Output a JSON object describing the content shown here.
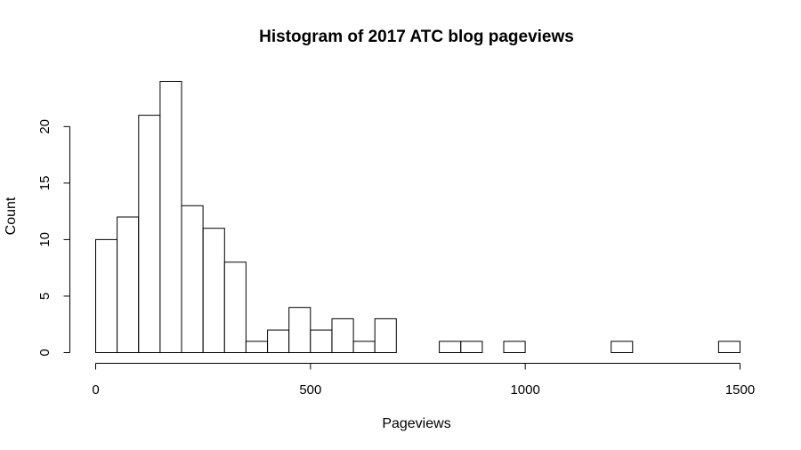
{
  "chart_data": {
    "type": "bar",
    "title": "Histogram of 2017 ATC blog pageviews",
    "xlabel": "Pageviews",
    "ylabel": "Count",
    "bin_width": 50,
    "bins": [
      {
        "start": 0,
        "end": 50,
        "count": 10
      },
      {
        "start": 50,
        "end": 100,
        "count": 12
      },
      {
        "start": 100,
        "end": 150,
        "count": 21
      },
      {
        "start": 150,
        "end": 200,
        "count": 24
      },
      {
        "start": 200,
        "end": 250,
        "count": 13
      },
      {
        "start": 250,
        "end": 300,
        "count": 11
      },
      {
        "start": 300,
        "end": 350,
        "count": 8
      },
      {
        "start": 350,
        "end": 400,
        "count": 1
      },
      {
        "start": 400,
        "end": 450,
        "count": 2
      },
      {
        "start": 450,
        "end": 500,
        "count": 4
      },
      {
        "start": 500,
        "end": 550,
        "count": 2
      },
      {
        "start": 550,
        "end": 600,
        "count": 3
      },
      {
        "start": 600,
        "end": 650,
        "count": 1
      },
      {
        "start": 650,
        "end": 700,
        "count": 3
      },
      {
        "start": 700,
        "end": 750,
        "count": 0
      },
      {
        "start": 750,
        "end": 800,
        "count": 0
      },
      {
        "start": 800,
        "end": 850,
        "count": 1
      },
      {
        "start": 850,
        "end": 900,
        "count": 1
      },
      {
        "start": 900,
        "end": 950,
        "count": 0
      },
      {
        "start": 950,
        "end": 1000,
        "count": 1
      },
      {
        "start": 1000,
        "end": 1050,
        "count": 0
      },
      {
        "start": 1050,
        "end": 1100,
        "count": 0
      },
      {
        "start": 1100,
        "end": 1150,
        "count": 0
      },
      {
        "start": 1150,
        "end": 1200,
        "count": 0
      },
      {
        "start": 1200,
        "end": 1250,
        "count": 1
      },
      {
        "start": 1250,
        "end": 1300,
        "count": 0
      },
      {
        "start": 1300,
        "end": 1350,
        "count": 0
      },
      {
        "start": 1350,
        "end": 1400,
        "count": 0
      },
      {
        "start": 1400,
        "end": 1450,
        "count": 0
      },
      {
        "start": 1450,
        "end": 1500,
        "count": 1
      }
    ],
    "xlim": [
      0,
      1500
    ],
    "ylim": [
      0,
      24
    ],
    "x_ticks": [
      0,
      500,
      1000,
      1500
    ],
    "y_ticks": [
      0,
      5,
      10,
      15,
      20
    ],
    "grid": false,
    "colors": {
      "bar_fill": "#ffffff",
      "bar_stroke": "#000000"
    }
  }
}
